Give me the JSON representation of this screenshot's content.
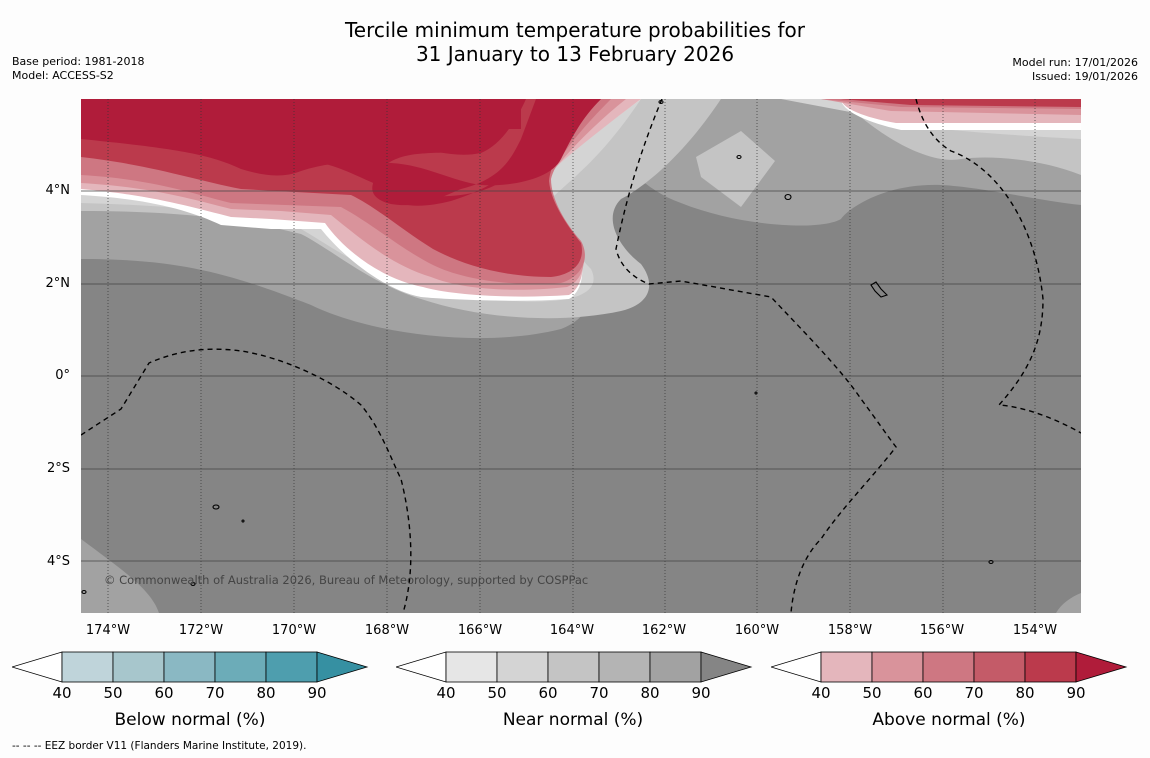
{
  "title_line1": "Tercile minimum temperature probabilities for",
  "title_line2": "31 January to 13 February 2026",
  "base_period": "Base period: 1981-2018",
  "model": "Model: ACCESS-S2",
  "model_run": "Model run: 17/01/2026",
  "issued": "Issued: 19/01/2026",
  "lat_labels": [
    "4°N",
    "2°N",
    "0°",
    "2°S",
    "4°S"
  ],
  "lon_labels": [
    "174°W",
    "172°W",
    "170°W",
    "168°W",
    "166°W",
    "164°W",
    "162°W",
    "160°W",
    "158°W",
    "156°W",
    "154°W"
  ],
  "copyright": "© Commonwealth of Australia 2026, Bureau of Meteorology, supported by COSPPac",
  "colorbars": [
    {
      "title": "Below normal (%)",
      "ticks": [
        "40",
        "50",
        "60",
        "70",
        "80",
        "90"
      ],
      "colors": [
        "#ffffff",
        "#bfd4da",
        "#a7c6cc",
        "#8ab8c3",
        "#6cacb8",
        "#4e9eae",
        "#3690a2"
      ]
    },
    {
      "title": "Near normal (%)",
      "ticks": [
        "40",
        "50",
        "60",
        "70",
        "80",
        "90"
      ],
      "colors": [
        "#ffffff",
        "#e6e6e6",
        "#d4d4d4",
        "#c4c4c4",
        "#b4b4b4",
        "#a2a2a2",
        "#858585"
      ]
    },
    {
      "title": "Above normal (%)",
      "ticks": [
        "40",
        "50",
        "60",
        "70",
        "80",
        "90"
      ],
      "colors": [
        "#ffffff",
        "#e4b6bc",
        "#d9939b",
        "#ce7782",
        "#c45b68",
        "#bb3a4c",
        "#b01c3a"
      ]
    }
  ],
  "footer": "--  --  -- EEZ border V11 (Flanders Marine Institute, 2019)."
}
